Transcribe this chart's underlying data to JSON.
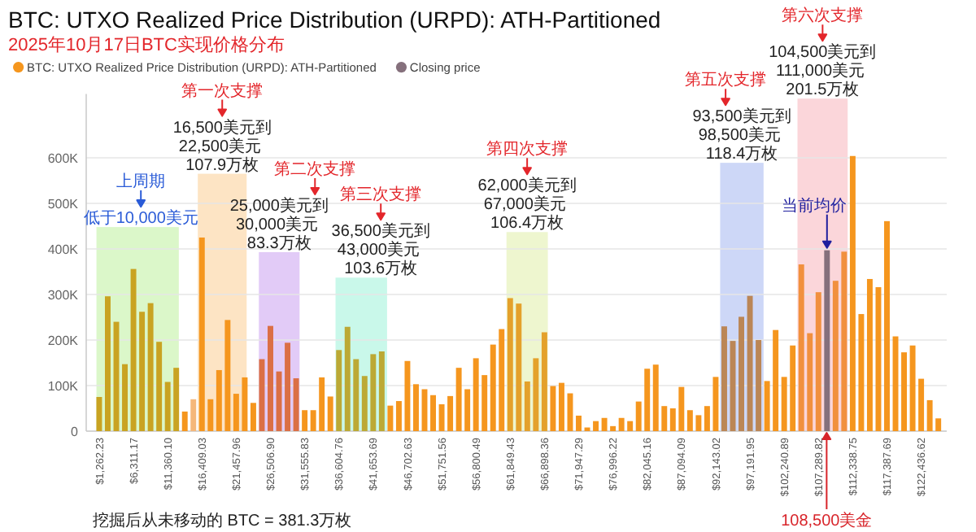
{
  "chart_data": {
    "type": "bar",
    "title": "BTC: UTXO Realized Price Distribution (URPD): ATH-Partitioned",
    "subtitle": "2025年10月17日BTC实现价格分布",
    "x": [
      1262.23,
      2524.47,
      3786.7,
      5048.93,
      6311.17,
      7573.4,
      8835.63,
      10097.87,
      11360.1,
      12622.33,
      13884.57,
      15146.8,
      16409.03,
      17671.26,
      18933.5,
      20195.73,
      21457.96,
      22720.2,
      23982.43,
      25244.66,
      26506.9,
      27769.13,
      29031.36,
      30293.6,
      31555.83,
      32818.06,
      34080.3,
      35342.53,
      36604.76,
      37867.0,
      39129.23,
      40391.46,
      41653.69,
      42915.93,
      44178.16,
      45440.4,
      46702.63,
      47964.86,
      49227.09,
      50489.33,
      51751.56,
      53013.79,
      54276.03,
      55538.26,
      56800.49,
      58062.73,
      59324.96,
      60587.19,
      61849.43,
      63111.66,
      64373.89,
      65636.13,
      66898.36,
      68160.59,
      69422.83,
      70685.06,
      71947.29,
      73209.53,
      74471.76,
      75733.99,
      76996.22,
      78258.46,
      79520.69,
      80782.92,
      82045.16,
      83307.39,
      84569.62,
      85831.86,
      87094.09,
      88356.32,
      89618.56,
      90880.79,
      92143.02,
      93405.26,
      94667.49,
      95929.72,
      97191.95,
      98454.19,
      99716.42,
      100978.66,
      102240.89,
      103503.12,
      104765.36,
      106027.59,
      107289.82,
      108552.06,
      109814.29,
      111076.52,
      112338.75,
      113600.99,
      114863.22,
      116125.45,
      117387.69,
      118649.92,
      119912.15,
      121174.39,
      122436.62,
      123698.85,
      124961.09
    ],
    "series": [
      {
        "name": "BTC: UTXO Realized Price Distribution (URPD): ATH-Partitioned",
        "color": "#f5961e",
        "colors": [
          "#c9a322",
          "#c9a322",
          "#c9a322",
          "#c9a322",
          "#c9a322",
          "#c9a322",
          "#c9a322",
          "#c9a322",
          "#c9a322",
          "#c9a322",
          "#f5961e",
          "#f5b77a",
          "#f5961e",
          "#f5961e",
          "#f5961e",
          "#f5961e",
          "#f5961e",
          "#f5961e",
          "#f5961e",
          "#db6f45",
          "#db6f45",
          "#db6f45",
          "#db6f45",
          "#db6f45",
          "#f5961e",
          "#f5961e",
          "#f5961e",
          "#f5961e",
          "#bca935",
          "#bca935",
          "#bca935",
          "#bca935",
          "#bca935",
          "#bca935",
          "#f5961e",
          "#f5961e",
          "#f5961e",
          "#f5961e",
          "#f5961e",
          "#f5961e",
          "#f5961e",
          "#f5961e",
          "#f5961e",
          "#f5961e",
          "#f5961e",
          "#f5961e",
          "#f5961e",
          "#f5961e",
          "#e4a12b",
          "#e4a12b",
          "#e4a12b",
          "#e4a12b",
          "#e4a12b",
          "#f5961e",
          "#f5961e",
          "#f5961e",
          "#f5961e",
          "#f5961e",
          "#f5961e",
          "#f5961e",
          "#f5961e",
          "#f5961e",
          "#f5961e",
          "#f5961e",
          "#f5961e",
          "#f5961e",
          "#f5961e",
          "#f5961e",
          "#f5961e",
          "#f5961e",
          "#f5961e",
          "#f5961e",
          "#f5961e",
          "#bb8656",
          "#bb8656",
          "#bb8656",
          "#bb8656",
          "#bb8656",
          "#f5961e",
          "#f5961e",
          "#f5961e",
          "#f5961e",
          "#f1903e",
          "#f1903e",
          "#f1903e",
          null,
          "#f1903e",
          "#f1903e",
          "#f5961e",
          "#f5961e",
          "#f5961e",
          "#f5961e",
          "#f5961e",
          "#f5961e",
          "#f5961e",
          "#f5961e",
          "#f5961e",
          "#f5961e",
          "#f5961e"
        ],
        "values": [
          75000,
          296000,
          240000,
          147000,
          356000,
          262000,
          281000,
          196000,
          108000,
          139000,
          43000,
          70000,
          425000,
          70000,
          134000,
          244000,
          82000,
          118000,
          62000,
          158000,
          231000,
          131000,
          194000,
          116000,
          46000,
          46000,
          118000,
          76000,
          178000,
          229000,
          158000,
          121000,
          169000,
          175000,
          56000,
          66000,
          154000,
          103000,
          92000,
          79000,
          59000,
          77000,
          139000,
          92000,
          160000,
          123000,
          190000,
          224000,
          292000,
          280000,
          109000,
          160000,
          217000,
          99000,
          106000,
          83000,
          34000,
          8000,
          22000,
          29000,
          11000,
          29000,
          22000,
          65000,
          137000,
          146000,
          55000,
          50000,
          97000,
          46000,
          35000,
          55000,
          119000,
          230000,
          198000,
          251000,
          297000,
          200000,
          110000,
          222000,
          119000,
          188000,
          366000,
          215000,
          305000,
          null,
          330000,
          394000,
          604000,
          257000,
          334000,
          316000,
          461000,
          208000,
          173000,
          188000,
          115000,
          68000,
          28000
        ]
      },
      {
        "name": "Closing price",
        "color": "#85707c",
        "values": [
          null,
          null,
          null,
          null,
          null,
          null,
          null,
          null,
          null,
          null,
          null,
          null,
          null,
          null,
          null,
          null,
          null,
          null,
          null,
          null,
          null,
          null,
          null,
          null,
          null,
          null,
          null,
          null,
          null,
          null,
          null,
          null,
          null,
          null,
          null,
          null,
          null,
          null,
          null,
          null,
          null,
          null,
          null,
          null,
          null,
          null,
          null,
          null,
          null,
          null,
          null,
          null,
          null,
          null,
          null,
          null,
          null,
          null,
          null,
          null,
          null,
          null,
          null,
          null,
          null,
          null,
          null,
          null,
          null,
          null,
          null,
          null,
          null,
          null,
          null,
          null,
          null,
          null,
          null,
          null,
          null,
          null,
          null,
          null,
          null,
          397000,
          null,
          null,
          null,
          null,
          null,
          null,
          null,
          null,
          null,
          null,
          null,
          null,
          null
        ]
      }
    ],
    "stacked": true,
    "xlim": [
      -650,
      126200
    ],
    "xticks": [
      {
        "value": 1262.23,
        "label": "$1,262.23"
      },
      {
        "value": 6311.17,
        "label": "$6,311.17"
      },
      {
        "value": 11360.1,
        "label": "$11,360.10"
      },
      {
        "value": 16409.03,
        "label": "$16,409.03"
      },
      {
        "value": 21457.96,
        "label": "$21,457.96"
      },
      {
        "value": 26506.9,
        "label": "$26,506.90"
      },
      {
        "value": 31555.83,
        "label": "$31,555.83"
      },
      {
        "value": 36604.76,
        "label": "$36,604.76"
      },
      {
        "value": 41653.69,
        "label": "$41,653.69"
      },
      {
        "value": 46702.63,
        "label": "$46,702.63"
      },
      {
        "value": 51751.56,
        "label": "$51,751.56"
      },
      {
        "value": 56800.49,
        "label": "$56,800.49"
      },
      {
        "value": 61849.43,
        "label": "$61,849.43"
      },
      {
        "value": 66898.36,
        "label": "$66,898.36"
      },
      {
        "value": 71947.29,
        "label": "$71,947.29"
      },
      {
        "value": 76996.22,
        "label": "$76,996.22"
      },
      {
        "value": 82045.16,
        "label": "$82,045.16"
      },
      {
        "value": 87094.09,
        "label": "$87,094.09"
      },
      {
        "value": 92143.02,
        "label": "$92,143.02"
      },
      {
        "value": 97191.95,
        "label": "$97,191.95"
      },
      {
        "value": 102240.89,
        "label": "$102,240.89"
      },
      {
        "value": 107289.82,
        "label": "$107,289.82"
      },
      {
        "value": 112338.75,
        "label": "$112,338.75"
      },
      {
        "value": 117387.69,
        "label": "$117,387.69"
      },
      {
        "value": 122436.62,
        "label": "$122,436.62"
      }
    ],
    "ylim": [
      0,
      740000
    ],
    "yticks": [
      0,
      {
        "value": 100000,
        "label": "100K"
      },
      {
        "value": 200000,
        "label": "200K"
      },
      {
        "value": 300000,
        "label": "300K"
      },
      {
        "value": 400000,
        "label": "400K"
      },
      {
        "value": 500000,
        "label": "500K"
      },
      {
        "value": 600000,
        "label": "600K"
      }
    ],
    "grid": "y",
    "legend": "top left",
    "bands": [
      {
        "axis": "x",
        "from": 860,
        "to": 13000,
        "color": "#dbf7c9"
      },
      {
        "axis": "x",
        "from": 15800,
        "to": 23000,
        "color": "#fde4c4"
      },
      {
        "axis": "x",
        "from": 24800,
        "to": 30800,
        "color": "#e2cbf7"
      },
      {
        "axis": "x",
        "from": 36100,
        "to": 43700,
        "color": "#c9f8ea"
      },
      {
        "axis": "x",
        "from": 61300,
        "to": 67400,
        "color": "#eef6cf"
      },
      {
        "axis": "x",
        "from": 92800,
        "to": 99200,
        "color": "#cdd7f7"
      },
      {
        "axis": "x",
        "from": 104200,
        "to": 111600,
        "color": "#fbd6da"
      }
    ],
    "annotations": [
      {
        "text": "低于10,000美元",
        "x": 6930,
        "y": 448000
      },
      {
        "text": "16,500美元到22,500美元 107.9万枚",
        "x": 19400,
        "y": 565000
      },
      {
        "text": "25,000美元到30,000美元 83.3万枚",
        "x": 27800,
        "y": 393000
      },
      {
        "text": "36,500美元到43,000美元 103.6万枚",
        "x": 39900,
        "y": 337000
      },
      {
        "text": "62,000美元到67,000美元 106.4万枚",
        "x": 64350,
        "y": 437000
      },
      {
        "text": "93,500美元到98,500美元 118.4万枚",
        "x": 96000,
        "y": 589000
      },
      {
        "text": "104,500美元到111,000美元 201.5万枚",
        "x": 107900,
        "y": 730000
      },
      "上周期",
      "第一次支撑",
      "第二次支撑",
      "第三次支撑",
      "第四次支撑",
      "第五次支撑",
      "第六次支撑",
      {
        "text": "当前均价",
        "x": 108552.06,
        "y": 397000
      },
      {
        "text": "108,500美金",
        "x": 108500,
        "y": 0
      },
      "挖掘后从未移动的 BTC = 381.3万枚"
    ]
  }
}
